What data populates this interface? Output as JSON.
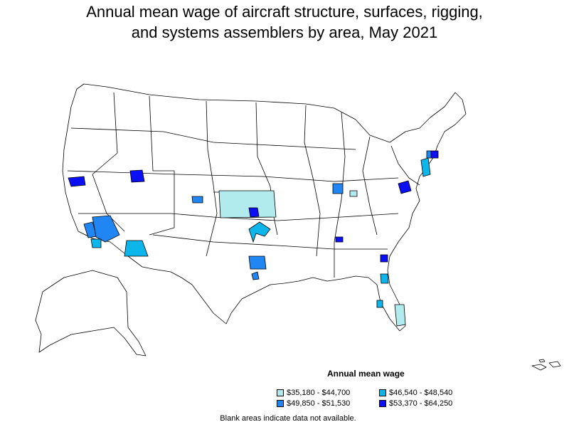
{
  "title_line1": "Annual mean wage of aircraft structure, surfaces, rigging,",
  "title_line2": "and systems assemblers by area, May 2021",
  "legend": {
    "title": "Annual mean wage",
    "items": [
      {
        "label": "$35,180 - $44,700",
        "color": "#b2ebee"
      },
      {
        "label": "$46,540 - $48,540",
        "color": "#0cb6eb"
      },
      {
        "label": "$49,850 - $51,530",
        "color": "#2086f3"
      },
      {
        "label": "$53,370 - $64,250",
        "color": "#0a0ff5"
      }
    ]
  },
  "footnote": "Blank areas indicate data not available.",
  "colors": {
    "outline": "#000000",
    "background": "#ffffff",
    "bin1": "#b2ebee",
    "bin2": "#0cb6eb",
    "bin3": "#2086f3",
    "bin4": "#0a0ff5"
  }
}
